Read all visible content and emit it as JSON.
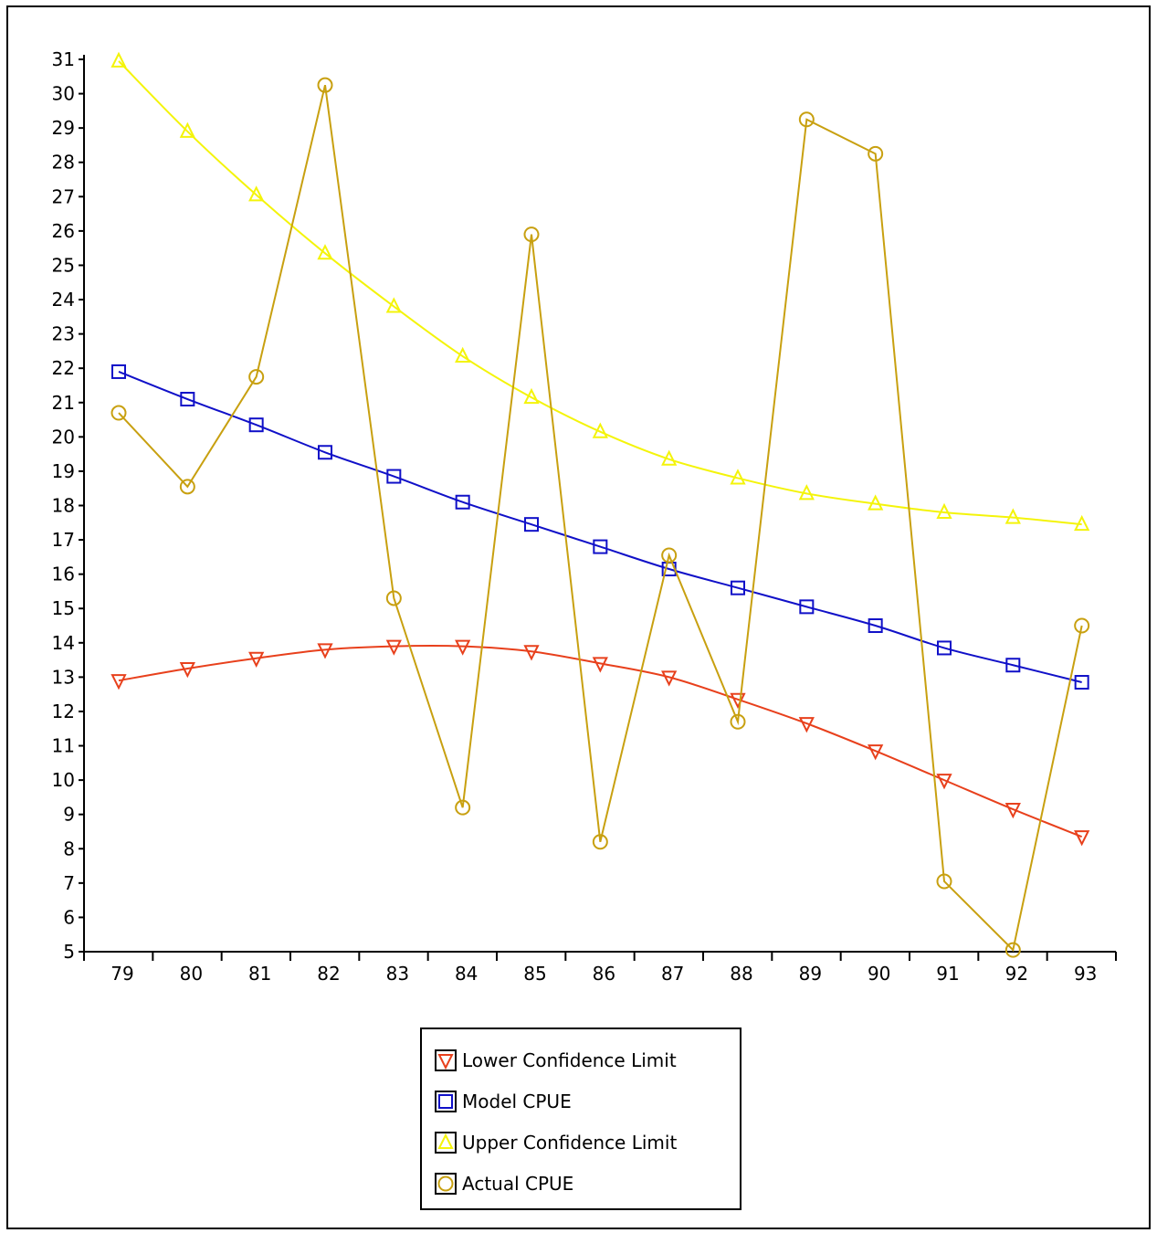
{
  "chart_data": {
    "type": "line",
    "title": "",
    "xlabel": "",
    "ylabel": "",
    "categories": [
      "79",
      "80",
      "81",
      "82",
      "83",
      "84",
      "85",
      "86",
      "87",
      "88",
      "89",
      "90",
      "91",
      "92",
      "93"
    ],
    "ylim": [
      5,
      31
    ],
    "yticks": [
      5,
      6,
      7,
      8,
      9,
      10,
      11,
      12,
      13,
      14,
      15,
      16,
      17,
      18,
      19,
      20,
      21,
      22,
      23,
      24,
      25,
      26,
      27,
      28,
      29,
      30,
      31
    ],
    "grid": false,
    "legend_position": "bottom-center",
    "series": [
      {
        "name": "Lower Confidence Limit",
        "color": "#e8401c",
        "marker": "triangle-down",
        "values": [
          12.9,
          13.25,
          13.55,
          13.8,
          13.9,
          13.9,
          13.75,
          13.4,
          13.0,
          12.35,
          11.65,
          10.85,
          10.0,
          9.15,
          8.35
        ]
      },
      {
        "name": "Model CPUE",
        "color": "#1010c8",
        "marker": "square",
        "values": [
          21.9,
          21.1,
          20.35,
          19.55,
          18.85,
          18.1,
          17.45,
          16.8,
          16.15,
          15.6,
          15.05,
          14.5,
          13.85,
          13.35,
          12.85
        ]
      },
      {
        "name": "Upper Confidence Limit",
        "color": "#f4f40a",
        "marker": "triangle-up",
        "values": [
          30.95,
          28.9,
          27.05,
          25.35,
          23.8,
          22.35,
          21.15,
          20.15,
          19.35,
          18.8,
          18.35,
          18.05,
          17.8,
          17.65,
          17.45
        ]
      },
      {
        "name": "Actual CPUE",
        "color": "#c8a010",
        "marker": "circle",
        "values": [
          20.7,
          18.55,
          21.75,
          30.25,
          15.3,
          9.2,
          25.9,
          8.2,
          16.55,
          11.7,
          29.25,
          28.25,
          7.05,
          5.05,
          14.5
        ]
      }
    ]
  }
}
